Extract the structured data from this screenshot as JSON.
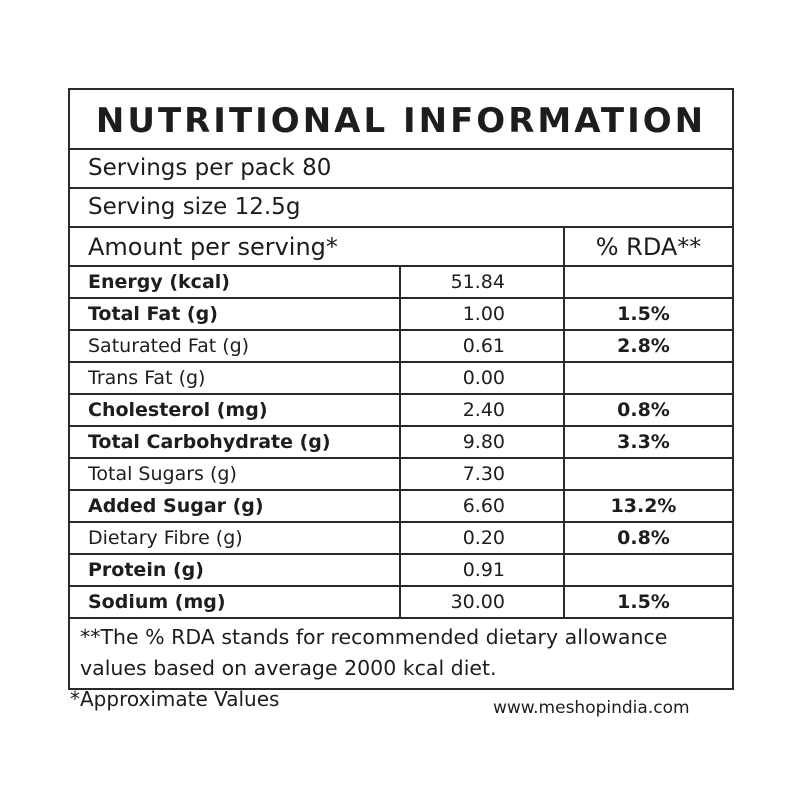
{
  "title": "NUTRITIONAL INFORMATION",
  "servings_per_pack": "Servings per pack 80",
  "serving_size": "Serving size 12.5g",
  "header": {
    "amount": "Amount per serving*",
    "rda": "% RDA**"
  },
  "rows": [
    {
      "name": "Energy (kcal)",
      "value": "51.84",
      "rda": "",
      "bold": true
    },
    {
      "name": "Total Fat (g)",
      "value": "1.00",
      "rda": "1.5%",
      "bold": true
    },
    {
      "name": "Saturated Fat (g)",
      "value": "0.61",
      "rda": "2.8%",
      "bold": false
    },
    {
      "name": "Trans Fat (g)",
      "value": "0.00",
      "rda": "",
      "bold": false
    },
    {
      "name": "Cholesterol (mg)",
      "value": "2.40",
      "rda": "0.8%",
      "bold": true
    },
    {
      "name": "Total Carbohydrate (g)",
      "value": "9.80",
      "rda": "3.3%",
      "bold": true
    },
    {
      "name": "Total Sugars (g)",
      "value": "7.30",
      "rda": "",
      "bold": false
    },
    {
      "name": "Added  Sugar (g)",
      "value": "6.60",
      "rda": "13.2%",
      "bold": true
    },
    {
      "name": "Dietary Fibre (g)",
      "value": "0.20",
      "rda": "0.8%",
      "bold": false
    },
    {
      "name": "Protein (g)",
      "value": "0.91",
      "rda": "",
      "bold": true
    },
    {
      "name": "Sodium (mg)",
      "value": "30.00",
      "rda": "1.5%",
      "bold": true
    }
  ],
  "footnote": "**The % RDA stands for recommended dietary allowance values based on average 2000 kcal diet.",
  "approx_note": "*Approximate Values",
  "website": "www.meshopindia.com"
}
